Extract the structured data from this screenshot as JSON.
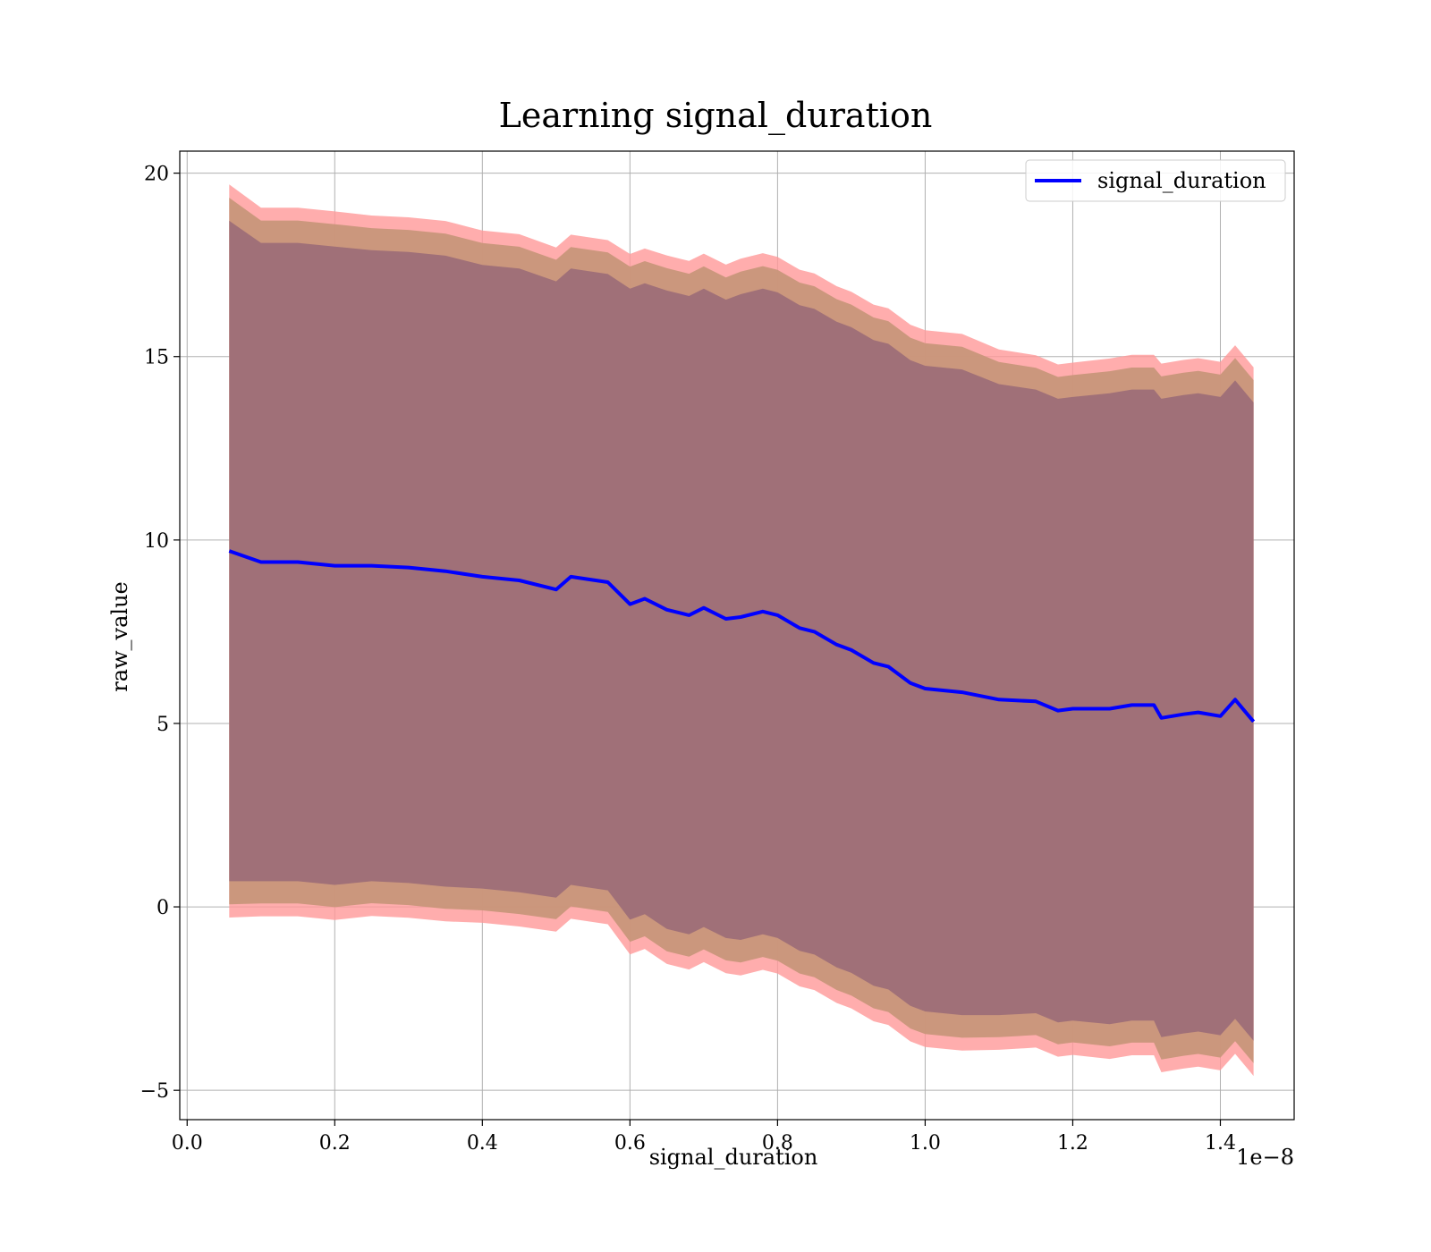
{
  "chart_data": {
    "type": "line",
    "title": "Learning signal_duration",
    "xlabel": "signal_duration",
    "ylabel": "raw_value",
    "x_offset_label": "1e−8",
    "xlim": [
      -0.01,
      1.5
    ],
    "ylim": [
      -5.8,
      20.6
    ],
    "x_ticks": [
      0.0,
      0.2,
      0.4,
      0.6,
      0.8,
      1.0,
      1.2,
      1.4
    ],
    "x_tick_labels": [
      "0.0",
      "0.2",
      "0.4",
      "0.6",
      "0.8",
      "1.0",
      "1.2",
      "1.4"
    ],
    "y_ticks": [
      -5,
      0,
      5,
      10,
      15,
      20
    ],
    "y_tick_labels": [
      "−5",
      "0",
      "5",
      "10",
      "15",
      "20"
    ],
    "grid": true,
    "legend_position": "top-right",
    "colors": {
      "line": "#0000ff",
      "band_outer": "#ff9999",
      "band_middle": "#c8967a",
      "band_inner": "#a07078"
    },
    "series": [
      {
        "name": "signal_duration",
        "x": [
          0.057,
          0.1,
          0.15,
          0.2,
          0.25,
          0.3,
          0.35,
          0.4,
          0.45,
          0.5,
          0.52,
          0.57,
          0.6,
          0.62,
          0.65,
          0.68,
          0.7,
          0.73,
          0.75,
          0.78,
          0.8,
          0.83,
          0.85,
          0.88,
          0.9,
          0.93,
          0.95,
          0.98,
          1.0,
          1.05,
          1.1,
          1.15,
          1.18,
          1.2,
          1.25,
          1.28,
          1.31,
          1.32,
          1.35,
          1.37,
          1.4,
          1.42,
          1.445
        ],
        "values": [
          9.7,
          9.4,
          9.4,
          9.3,
          9.3,
          9.25,
          9.15,
          9.0,
          8.9,
          8.65,
          9.0,
          8.85,
          8.25,
          8.4,
          8.1,
          7.95,
          8.15,
          7.85,
          7.9,
          8.05,
          7.95,
          7.6,
          7.5,
          7.15,
          7.0,
          6.65,
          6.55,
          6.1,
          5.95,
          5.85,
          5.65,
          5.6,
          5.35,
          5.4,
          5.4,
          5.5,
          5.5,
          5.15,
          5.25,
          5.3,
          5.2,
          5.65,
          5.05
        ],
        "std": [
          9.0,
          8.7,
          8.7,
          8.7,
          8.6,
          8.6,
          8.6,
          8.5,
          8.5,
          8.4,
          8.4,
          8.4,
          8.6,
          8.6,
          8.7,
          8.7,
          8.7,
          8.7,
          8.8,
          8.8,
          8.8,
          8.8,
          8.8,
          8.8,
          8.8,
          8.8,
          8.8,
          8.8,
          8.8,
          8.8,
          8.6,
          8.5,
          8.5,
          8.5,
          8.6,
          8.6,
          8.6,
          8.7,
          8.7,
          8.7,
          8.7,
          8.7,
          8.7
        ]
      }
    ]
  }
}
